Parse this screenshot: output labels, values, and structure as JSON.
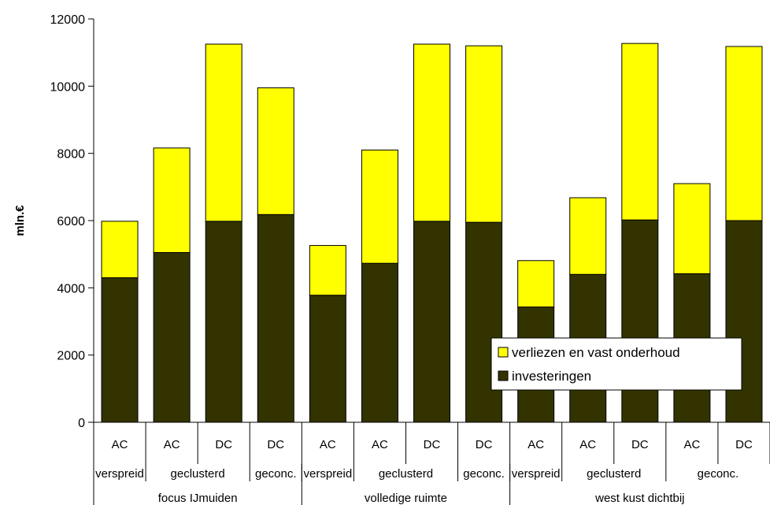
{
  "chart_data": {
    "type": "bar",
    "stacked": true,
    "ylabel": "mln.€",
    "ylim": [
      0,
      12000
    ],
    "yticks": [
      0,
      2000,
      4000,
      6000,
      8000,
      10000,
      12000
    ],
    "grid": false,
    "legend_position": "bottom-right",
    "categories": [
      "AC",
      "AC",
      "DC",
      "DC",
      "AC",
      "AC",
      "DC",
      "DC",
      "AC",
      "AC",
      "DC",
      "AC",
      "DC"
    ],
    "level2": [
      {
        "label": "verspreid",
        "span": 1
      },
      {
        "label": "geclusterd",
        "span": 2
      },
      {
        "label": "geconc.",
        "span": 1
      },
      {
        "label": "verspreid",
        "span": 1
      },
      {
        "label": "geclusterd",
        "span": 2
      },
      {
        "label": "geconc.",
        "span": 1
      },
      {
        "label": "verspreid",
        "span": 1
      },
      {
        "label": "geclusterd",
        "span": 2
      },
      {
        "label": "geconc.",
        "span": 2
      }
    ],
    "level3": [
      {
        "label": "focus IJmuiden",
        "span": 4
      },
      {
        "label": "volledige ruimte",
        "span": 4
      },
      {
        "label": "west kust dichtbij",
        "span": 5
      }
    ],
    "series": [
      {
        "name": "investeringen",
        "color": "#333300",
        "values": [
          4300,
          5050,
          5980,
          6180,
          3780,
          4730,
          5980,
          5950,
          3430,
          4400,
          6020,
          4420,
          6000
        ]
      },
      {
        "name": "verliezen en vast onderhoud",
        "color": "#ffff00",
        "values": [
          1680,
          3110,
          5270,
          3770,
          1480,
          3370,
          5270,
          5250,
          1380,
          2280,
          5250,
          2680,
          5180
        ]
      }
    ]
  }
}
